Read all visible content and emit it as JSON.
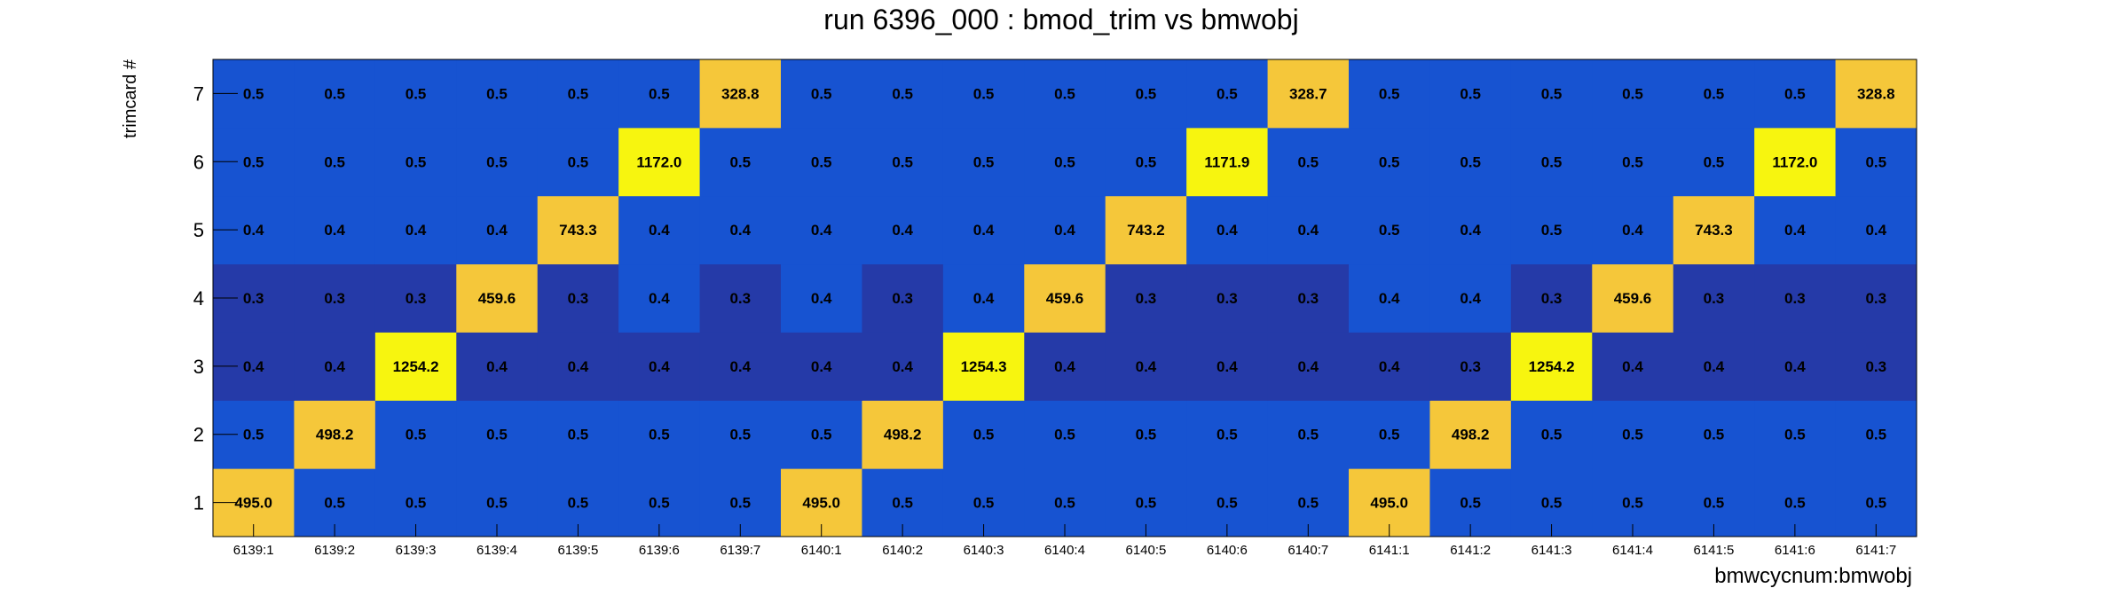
{
  "chart_data": {
    "type": "heatmap",
    "title": "run 6396_000 : bmod_trim vs bmwobj",
    "xlabel": "bmwcycnum:bmwobj",
    "ylabel": "trimcard #",
    "x_categories": [
      "6139:1",
      "6139:2",
      "6139:3",
      "6139:4",
      "6139:5",
      "6139:6",
      "6139:7",
      "6140:1",
      "6140:2",
      "6140:3",
      "6140:4",
      "6140:5",
      "6140:6",
      "6140:7",
      "6141:1",
      "6141:2",
      "6141:3",
      "6141:4",
      "6141:5",
      "6141:6",
      "6141:7"
    ],
    "y_categories": [
      "1",
      "2",
      "3",
      "4",
      "5",
      "6",
      "7"
    ],
    "values": [
      [
        "495.0",
        "0.5",
        "0.5",
        "0.5",
        "0.5",
        "0.5",
        "0.5",
        "495.0",
        "0.5",
        "0.5",
        "0.5",
        "0.5",
        "0.5",
        "0.5",
        "495.0",
        "0.5",
        "0.5",
        "0.5",
        "0.5",
        "0.5",
        "0.5"
      ],
      [
        "0.5",
        "498.2",
        "0.5",
        "0.5",
        "0.5",
        "0.5",
        "0.5",
        "0.5",
        "498.2",
        "0.5",
        "0.5",
        "0.5",
        "0.5",
        "0.5",
        "0.5",
        "498.2",
        "0.5",
        "0.5",
        "0.5",
        "0.5",
        "0.5"
      ],
      [
        "0.4",
        "0.4",
        "1254.2",
        "0.4",
        "0.4",
        "0.4",
        "0.4",
        "0.4",
        "0.4",
        "1254.3",
        "0.4",
        "0.4",
        "0.4",
        "0.4",
        "0.4",
        "0.3",
        "1254.2",
        "0.4",
        "0.4",
        "0.4",
        "0.3"
      ],
      [
        "0.3",
        "0.3",
        "0.3",
        "459.6",
        "0.3",
        "0.4",
        "0.3",
        "0.4",
        "0.3",
        "0.4",
        "459.6",
        "0.3",
        "0.3",
        "0.3",
        "0.4",
        "0.4",
        "0.3",
        "459.6",
        "0.3",
        "0.3",
        "0.3"
      ],
      [
        "0.4",
        "0.4",
        "0.4",
        "0.4",
        "743.3",
        "0.4",
        "0.4",
        "0.4",
        "0.4",
        "0.4",
        "0.4",
        "743.2",
        "0.4",
        "0.4",
        "0.5",
        "0.4",
        "0.5",
        "0.4",
        "743.3",
        "0.4",
        "0.4"
      ],
      [
        "0.5",
        "0.5",
        "0.5",
        "0.5",
        "0.5",
        "1172.0",
        "0.5",
        "0.5",
        "0.5",
        "0.5",
        "0.5",
        "0.5",
        "1171.9",
        "0.5",
        "0.5",
        "0.5",
        "0.5",
        "0.5",
        "0.5",
        "1172.0",
        "0.5"
      ],
      [
        "0.5",
        "0.5",
        "0.5",
        "0.5",
        "0.5",
        "0.5",
        "328.8",
        "0.5",
        "0.5",
        "0.5",
        "0.5",
        "0.5",
        "0.5",
        "328.7",
        "0.5",
        "0.5",
        "0.5",
        "0.5",
        "0.5",
        "0.5",
        "328.8"
      ]
    ],
    "colors": {
      "high": "#f7f50f",
      "mid_high": "#f5c73a",
      "low_mid": "#1753d1",
      "low": "#253aa8",
      "frame": "#000000"
    }
  }
}
